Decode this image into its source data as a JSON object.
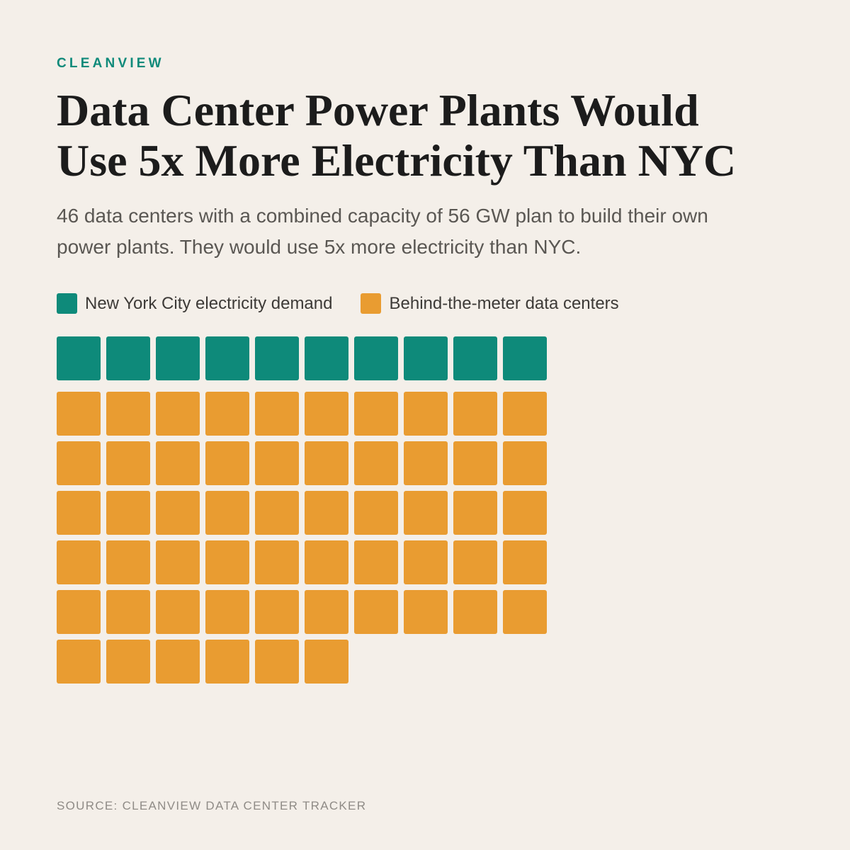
{
  "brand": "CLEANVIEW",
  "title": "Data Center Power Plants Would\nUse 5x More Electricity Than NYC",
  "subtitle": "46 data centers with a combined capacity of 56 GW plan to build their own power plants. They would use 5x more electricity than NYC.",
  "source": "SOURCE: CLEANVIEW DATA CENTER TRACKER",
  "chart_data": {
    "type": "waffle",
    "units_per_row": 10,
    "series": [
      {
        "name": "New York City electricity demand",
        "count": 10,
        "color": "#0e8a7a"
      },
      {
        "name": "Behind-the-meter data centers",
        "count": 56,
        "color": "#e99c31"
      }
    ]
  }
}
